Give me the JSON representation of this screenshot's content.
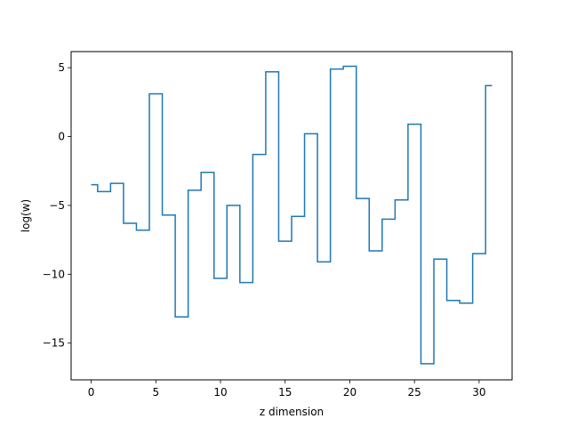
{
  "chart_data": {
    "type": "line",
    "drawstyle": "steps-mid",
    "title": "",
    "xlabel": "z dimension",
    "ylabel": "log(w)",
    "xlim": [
      -1.55,
      32.55
    ],
    "ylim": [
      -17.67,
      6.17
    ],
    "grid": false,
    "x_ticks": [
      0,
      5,
      10,
      15,
      20,
      25,
      30
    ],
    "x_tick_labels": [
      "0",
      "5",
      "10",
      "15",
      "20",
      "25",
      "30"
    ],
    "y_ticks": [
      -15,
      -10,
      -5,
      0,
      5
    ],
    "y_tick_labels": [
      "−15",
      "−10",
      "−5",
      "0",
      "5"
    ],
    "series": [
      {
        "color": "#1f77b4",
        "x": [
          0,
          1,
          2,
          3,
          4,
          5,
          6,
          7,
          8,
          9,
          10,
          11,
          12,
          13,
          14,
          15,
          16,
          17,
          18,
          19,
          20,
          21,
          22,
          23,
          24,
          25,
          26,
          27,
          28,
          29,
          30,
          31
        ],
        "y": [
          -3.5,
          -4.0,
          -3.4,
          -6.3,
          -6.8,
          3.1,
          -5.7,
          -13.1,
          -3.9,
          -2.6,
          -10.3,
          -5.0,
          -10.6,
          -1.3,
          4.7,
          -7.6,
          -5.8,
          0.2,
          -9.1,
          4.9,
          5.1,
          -4.5,
          -8.3,
          -6.0,
          -4.6,
          0.9,
          -16.5,
          -8.9,
          -11.9,
          -12.1,
          -8.5,
          3.7
        ]
      }
    ]
  }
}
